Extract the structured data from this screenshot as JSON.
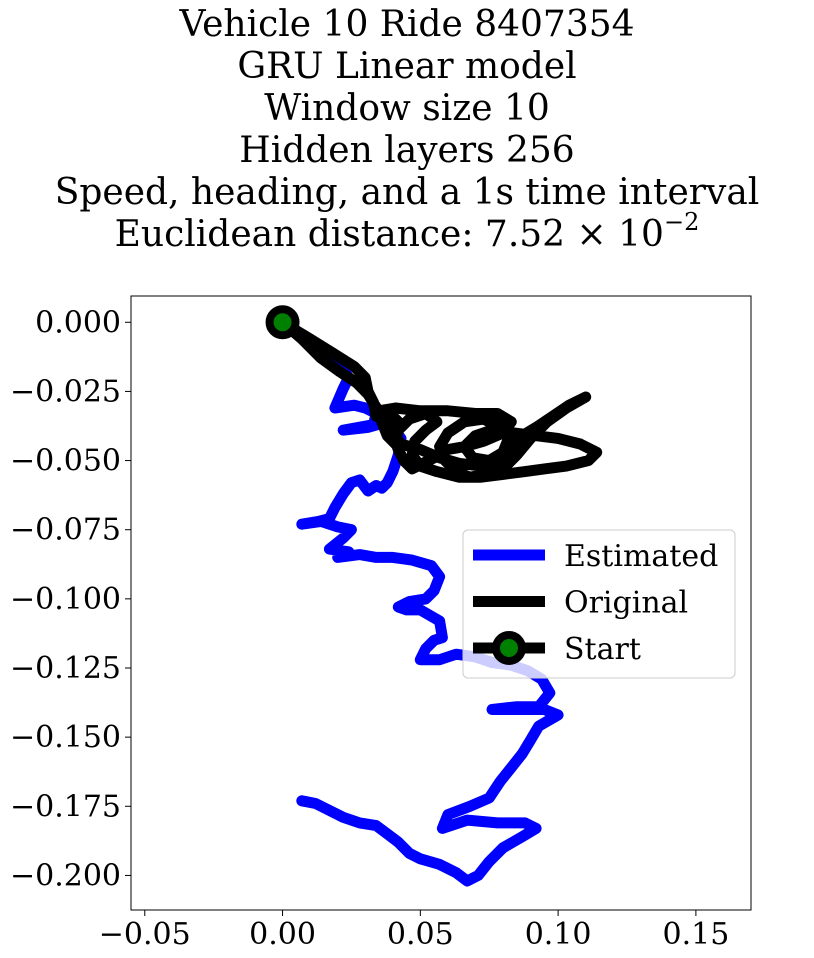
{
  "title": {
    "line1": "Vehicle 10 Ride 8407354",
    "line2": "GRU Linear model",
    "line3": "Window size 10",
    "line4": "Hidden layers 256",
    "line5": "Speed, heading, and a 1s time interval",
    "line6_prefix": "Euclidean distance: 7.52 × 10",
    "line6_exponent": "−2"
  },
  "chart_data": {
    "type": "line",
    "xlim": [
      -0.055,
      0.17
    ],
    "ylim": [
      -0.2125,
      0.0095
    ],
    "xticks": [
      -0.05,
      0.0,
      0.05,
      0.1,
      0.15
    ],
    "xtick_labels": [
      "−0.05",
      "0.00",
      "0.05",
      "0.10",
      "0.15"
    ],
    "yticks": [
      0.0,
      -0.025,
      -0.05,
      -0.075,
      -0.1,
      -0.125,
      -0.15,
      -0.175,
      -0.2
    ],
    "ytick_labels": [
      "0.000",
      "−0.025",
      "−0.050",
      "−0.075",
      "−0.100",
      "−0.125",
      "−0.150",
      "−0.175",
      "−0.200"
    ],
    "grid": false,
    "legend_position": "center-right",
    "series": [
      {
        "name": "Estimated",
        "color": "#0000ff",
        "points": [
          [
            0.0,
            0.0
          ],
          [
            0.008,
            -0.006
          ],
          [
            0.015,
            -0.01
          ],
          [
            0.02,
            -0.014
          ],
          [
            0.024,
            -0.02
          ],
          [
            0.022,
            -0.024
          ],
          [
            0.019,
            -0.031
          ],
          [
            0.026,
            -0.03
          ],
          [
            0.03,
            -0.031
          ],
          [
            0.034,
            -0.033
          ],
          [
            0.033,
            -0.037
          ],
          [
            0.022,
            -0.039
          ],
          [
            0.031,
            -0.038
          ],
          [
            0.038,
            -0.036
          ],
          [
            0.043,
            -0.042
          ],
          [
            0.042,
            -0.048
          ],
          [
            0.04,
            -0.054
          ],
          [
            0.038,
            -0.058
          ],
          [
            0.036,
            -0.06
          ],
          [
            0.034,
            -0.059
          ],
          [
            0.031,
            -0.061
          ],
          [
            0.028,
            -0.057
          ],
          [
            0.025,
            -0.058
          ],
          [
            0.022,
            -0.062
          ],
          [
            0.019,
            -0.067
          ],
          [
            0.017,
            -0.071
          ],
          [
            0.013,
            -0.072
          ],
          [
            0.007,
            -0.073
          ],
          [
            0.014,
            -0.072
          ],
          [
            0.02,
            -0.074
          ],
          [
            0.025,
            -0.075
          ],
          [
            0.022,
            -0.078
          ],
          [
            0.017,
            -0.082
          ],
          [
            0.024,
            -0.083
          ],
          [
            0.02,
            -0.085
          ],
          [
            0.028,
            -0.084
          ],
          [
            0.034,
            -0.085
          ],
          [
            0.04,
            -0.085
          ],
          [
            0.047,
            -0.086
          ],
          [
            0.054,
            -0.088
          ],
          [
            0.057,
            -0.092
          ],
          [
            0.055,
            -0.097
          ],
          [
            0.052,
            -0.1
          ],
          [
            0.046,
            -0.101
          ],
          [
            0.042,
            -0.103
          ],
          [
            0.045,
            -0.104
          ],
          [
            0.05,
            -0.104
          ],
          [
            0.057,
            -0.108
          ],
          [
            0.058,
            -0.114
          ],
          [
            0.055,
            -0.115
          ],
          [
            0.052,
            -0.118
          ],
          [
            0.05,
            -0.122
          ],
          [
            0.057,
            -0.122
          ],
          [
            0.063,
            -0.12
          ],
          [
            0.07,
            -0.121
          ],
          [
            0.076,
            -0.123
          ],
          [
            0.083,
            -0.124
          ],
          [
            0.089,
            -0.126
          ],
          [
            0.094,
            -0.129
          ],
          [
            0.097,
            -0.134
          ],
          [
            0.093,
            -0.139
          ],
          [
            0.085,
            -0.139
          ],
          [
            0.076,
            -0.14
          ],
          [
            0.08,
            -0.14
          ],
          [
            0.088,
            -0.14
          ],
          [
            0.095,
            -0.14
          ],
          [
            0.1,
            -0.142
          ],
          [
            0.093,
            -0.146
          ],
          [
            0.09,
            -0.151
          ],
          [
            0.087,
            -0.156
          ],
          [
            0.083,
            -0.161
          ],
          [
            0.079,
            -0.166
          ],
          [
            0.075,
            -0.172
          ],
          [
            0.068,
            -0.175
          ],
          [
            0.06,
            -0.178
          ],
          [
            0.058,
            -0.183
          ],
          [
            0.067,
            -0.18
          ],
          [
            0.078,
            -0.181
          ],
          [
            0.088,
            -0.181
          ],
          [
            0.092,
            -0.183
          ],
          [
            0.087,
            -0.186
          ],
          [
            0.08,
            -0.19
          ],
          [
            0.075,
            -0.195
          ],
          [
            0.071,
            -0.2
          ],
          [
            0.067,
            -0.202
          ],
          [
            0.063,
            -0.199
          ],
          [
            0.057,
            -0.196
          ],
          [
            0.05,
            -0.194
          ],
          [
            0.046,
            -0.192
          ],
          [
            0.042,
            -0.188
          ],
          [
            0.038,
            -0.185
          ],
          [
            0.034,
            -0.182
          ],
          [
            0.028,
            -0.181
          ],
          [
            0.022,
            -0.179
          ],
          [
            0.016,
            -0.176
          ],
          [
            0.012,
            -0.174
          ],
          [
            0.007,
            -0.173
          ]
        ]
      },
      {
        "name": "Original",
        "color": "#000000",
        "points": [
          [
            0.0,
            0.0
          ],
          [
            0.01,
            -0.006
          ],
          [
            0.018,
            -0.011
          ],
          [
            0.026,
            -0.016
          ],
          [
            0.03,
            -0.02
          ],
          [
            0.031,
            -0.025
          ],
          [
            0.033,
            -0.029
          ],
          [
            0.034,
            -0.034
          ],
          [
            0.038,
            -0.032
          ],
          [
            0.042,
            -0.036
          ],
          [
            0.04,
            -0.04
          ],
          [
            0.043,
            -0.044
          ],
          [
            0.05,
            -0.046
          ],
          [
            0.057,
            -0.049
          ],
          [
            0.064,
            -0.051
          ],
          [
            0.072,
            -0.052
          ],
          [
            0.078,
            -0.05
          ],
          [
            0.083,
            -0.046
          ],
          [
            0.087,
            -0.041
          ],
          [
            0.092,
            -0.038
          ],
          [
            0.098,
            -0.034
          ],
          [
            0.104,
            -0.03
          ],
          [
            0.11,
            -0.027
          ],
          [
            0.103,
            -0.031
          ],
          [
            0.096,
            -0.036
          ],
          [
            0.09,
            -0.042
          ],
          [
            0.085,
            -0.048
          ],
          [
            0.08,
            -0.053
          ],
          [
            0.074,
            -0.055
          ],
          [
            0.068,
            -0.056
          ],
          [
            0.063,
            -0.054
          ],
          [
            0.059,
            -0.05
          ],
          [
            0.057,
            -0.045
          ],
          [
            0.06,
            -0.04
          ],
          [
            0.066,
            -0.036
          ],
          [
            0.073,
            -0.035
          ],
          [
            0.079,
            -0.038
          ],
          [
            0.082,
            -0.042
          ],
          [
            0.08,
            -0.047
          ],
          [
            0.075,
            -0.05
          ],
          [
            0.069,
            -0.049
          ],
          [
            0.066,
            -0.045
          ],
          [
            0.07,
            -0.041
          ],
          [
            0.076,
            -0.039
          ],
          [
            0.084,
            -0.04
          ],
          [
            0.092,
            -0.041
          ],
          [
            0.1,
            -0.042
          ],
          [
            0.108,
            -0.044
          ],
          [
            0.114,
            -0.047
          ],
          [
            0.111,
            -0.05
          ],
          [
            0.103,
            -0.052
          ],
          [
            0.095,
            -0.053
          ],
          [
            0.088,
            -0.054
          ],
          [
            0.08,
            -0.055
          ],
          [
            0.072,
            -0.056
          ],
          [
            0.064,
            -0.056
          ],
          [
            0.056,
            -0.054
          ],
          [
            0.05,
            -0.052
          ],
          [
            0.047,
            -0.048
          ],
          [
            0.048,
            -0.043
          ],
          [
            0.052,
            -0.039
          ],
          [
            0.056,
            -0.036
          ],
          [
            0.052,
            -0.033
          ],
          [
            0.046,
            -0.035
          ],
          [
            0.042,
            -0.039
          ],
          [
            0.041,
            -0.044
          ],
          [
            0.038,
            -0.041
          ],
          [
            0.036,
            -0.036
          ],
          [
            0.035,
            -0.032
          ],
          [
            0.041,
            -0.031
          ],
          [
            0.05,
            -0.032
          ],
          [
            0.06,
            -0.032
          ],
          [
            0.07,
            -0.033
          ],
          [
            0.078,
            -0.033
          ],
          [
            0.083,
            -0.036
          ],
          [
            0.08,
            -0.04
          ],
          [
            0.073,
            -0.043
          ],
          [
            0.066,
            -0.045
          ],
          [
            0.06,
            -0.046
          ],
          [
            0.055,
            -0.049
          ],
          [
            0.051,
            -0.051
          ],
          [
            0.047,
            -0.053
          ],
          [
            0.044,
            -0.05
          ],
          [
            0.042,
            -0.046
          ],
          [
            0.04,
            -0.041
          ],
          [
            0.036,
            -0.034
          ],
          [
            0.031,
            -0.026
          ],
          [
            0.027,
            -0.022
          ],
          [
            0.021,
            -0.018
          ],
          [
            0.014,
            -0.013
          ],
          [
            0.007,
            -0.006
          ],
          [
            0.0,
            0.0
          ]
        ]
      }
    ],
    "markers": [
      {
        "name": "Start",
        "x": 0.0,
        "y": 0.0,
        "edge_color": "#000000",
        "face_color": "#008000"
      }
    ]
  }
}
